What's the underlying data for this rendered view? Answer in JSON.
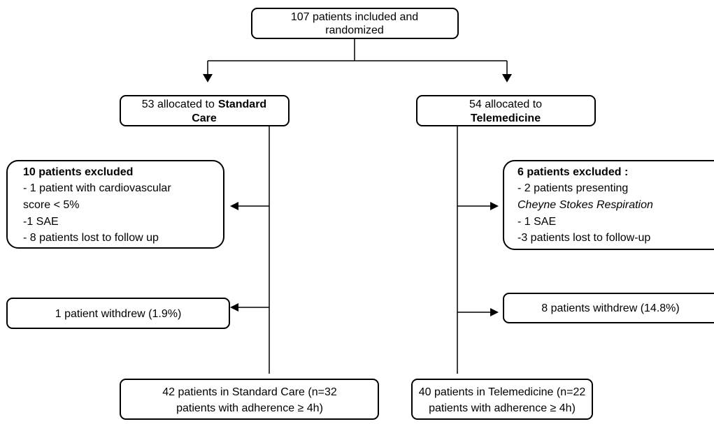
{
  "nodes": {
    "randomized": {
      "lines": [
        "107 patients included and",
        "randomized"
      ]
    },
    "standard_allocation": {
      "line1": "53 allocated to",
      "line1_bold": "Standard",
      "line2_bold": "Care"
    },
    "telemedicine_allocation": {
      "line1": "54 allocated to",
      "line2_bold": "Telemedicine"
    },
    "standard_excluded": {
      "heading": "10 patients excluded",
      "lines": [
        "- 1 patient with cardiovascular",
        "score < 5%",
        "-1 SAE",
        "- 8 patients lost to follow up"
      ]
    },
    "telemedicine_excluded": {
      "heading": "6 patients excluded :",
      "line1": "- 2 patients presenting",
      "line2_italic": "Cheyne Stokes Respiration",
      "line3": "- 1 SAE",
      "line4": "-3 patients lost to follow-up"
    },
    "standard_withdrew": {
      "text": "1 patient withdrew (1.9%)"
    },
    "telemedicine_withdrew": {
      "text": "8 patients withdrew (14.8%)"
    },
    "standard_final": {
      "lines": [
        "42 patients in Standard Care (n=32",
        "patients with adherence ≥ 4h)"
      ]
    },
    "telemedicine_final": {
      "lines": [
        "40 patients in Telemedicine (n=22",
        "patients with adherence ≥ 4h)"
      ]
    }
  }
}
